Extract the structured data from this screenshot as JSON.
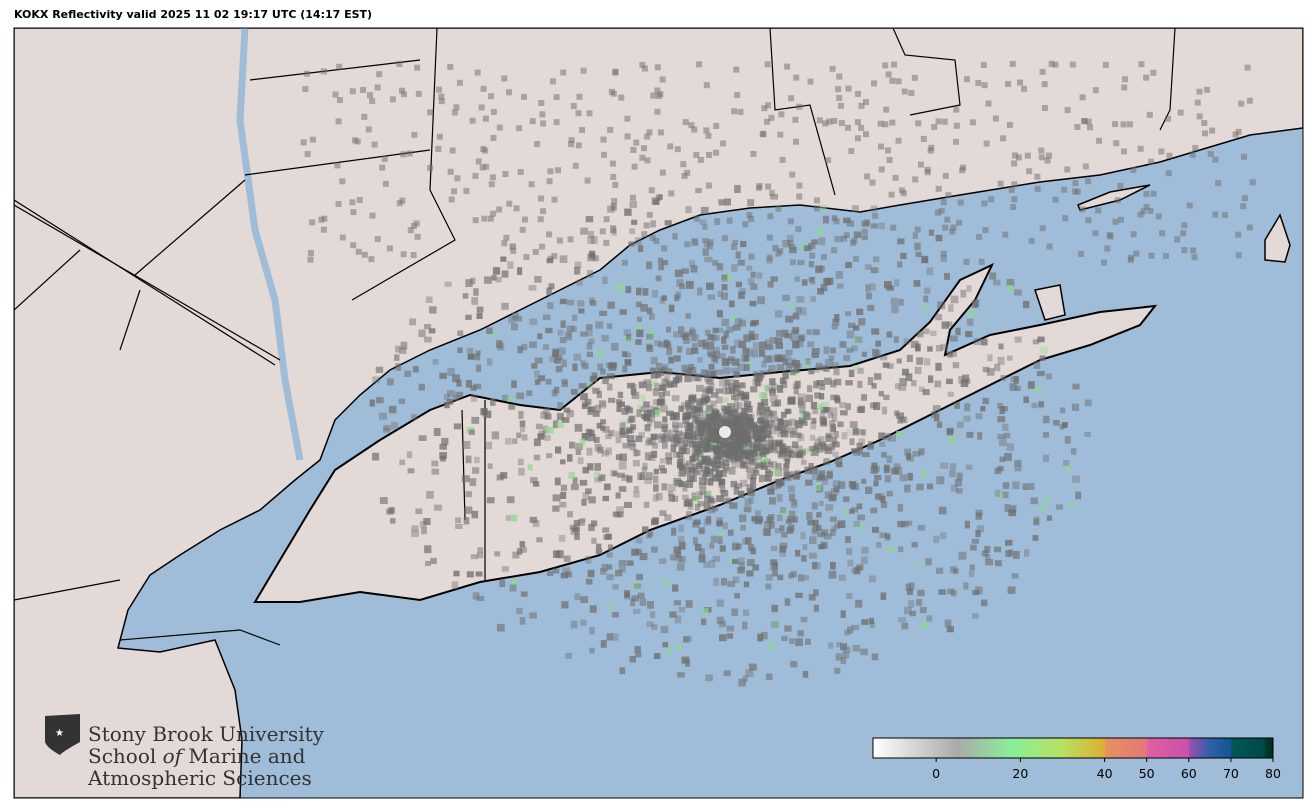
{
  "title": "KOKX Reflectivity valid 2025 11 02 19:17 UTC (14:17 EST)",
  "map": {
    "radar_site": "KOKX",
    "product": "Reflectivity",
    "colors": {
      "ocean": "#9fbcd8",
      "land": "#e3d9d6",
      "border": "#000000",
      "radar_gray": "#707070"
    }
  },
  "logo": {
    "line1": "Stony Brook University",
    "line2_a": "School ",
    "line2_b": "of",
    "line2_c": " Marine and",
    "line3": "Atmospheric Sciences"
  },
  "colorbar": {
    "range": [
      -15,
      80
    ],
    "ticks": [
      0,
      20,
      40,
      50,
      60,
      70,
      80
    ],
    "tick_labels": [
      "0",
      "20",
      "40",
      "50",
      "60",
      "70",
      "80"
    ],
    "stops": [
      {
        "v": -15,
        "c": "#ffffff"
      },
      {
        "v": 5,
        "c": "#aaaaaa"
      },
      {
        "v": 18,
        "c": "#88f098"
      },
      {
        "v": 30,
        "c": "#b8e060"
      },
      {
        "v": 40,
        "c": "#dcb030"
      },
      {
        "v": 40.2,
        "c": "#e89060"
      },
      {
        "v": 50,
        "c": "#e07878"
      },
      {
        "v": 50.2,
        "c": "#e060a0"
      },
      {
        "v": 60,
        "c": "#c850a8"
      },
      {
        "v": 60.2,
        "c": "#9850b0"
      },
      {
        "v": 65,
        "c": "#3060a8"
      },
      {
        "v": 70,
        "c": "#105590"
      },
      {
        "v": 70.2,
        "c": "#005858"
      },
      {
        "v": 78,
        "c": "#004848"
      },
      {
        "v": 78.2,
        "c": "#003a28"
      },
      {
        "v": 80,
        "c": "#003020"
      }
    ]
  }
}
